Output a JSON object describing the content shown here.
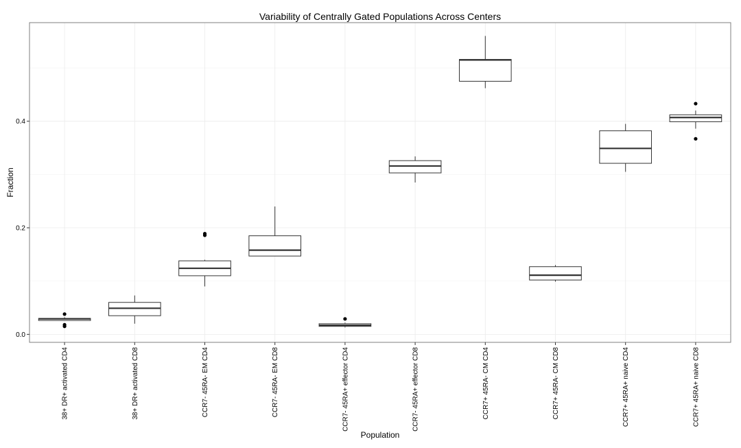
{
  "chart_data": {
    "type": "boxplot",
    "title": "Variability of Centrally Gated Populations Across Centers",
    "xlabel": "Population",
    "ylabel": "Fraction",
    "ylim": [
      -0.015,
      0.585
    ],
    "yticks": [
      0.0,
      0.2,
      0.4
    ],
    "ytick_labels": [
      "0.0",
      "0.2",
      "0.4"
    ],
    "grid": true,
    "categories": [
      "38+ DR+ activated CD4",
      "38+ DR+ activated CD8",
      "CCR7- 45RA- EM CD4",
      "CCR7- 45RA- EM CD8",
      "CCR7- 45RA+ effector CD4",
      "CCR7- 45RA+ effector CD8",
      "CCR7+ 45RA- CM CD4",
      "CCR7+ 45RA- CM CD8",
      "CCR7+ 45RA+ naive CD4",
      "CCR7+ 45RA+ naive CD8"
    ],
    "boxes": [
      {
        "whisker_low": 0.026,
        "q1": 0.026,
        "median": 0.029,
        "q3": 0.03,
        "whisker_high": 0.032,
        "outliers": [
          0.015,
          0.018,
          0.038
        ]
      },
      {
        "whisker_low": 0.02,
        "q1": 0.035,
        "median": 0.049,
        "q3": 0.06,
        "whisker_high": 0.073,
        "outliers": []
      },
      {
        "whisker_low": 0.09,
        "q1": 0.11,
        "median": 0.124,
        "q3": 0.138,
        "whisker_high": 0.14,
        "outliers": [
          0.186,
          0.189
        ]
      },
      {
        "whisker_low": 0.147,
        "q1": 0.147,
        "median": 0.158,
        "q3": 0.185,
        "whisker_high": 0.24,
        "outliers": []
      },
      {
        "whisker_low": 0.013,
        "q1": 0.015,
        "median": 0.017,
        "q3": 0.02,
        "whisker_high": 0.022,
        "outliers": [
          0.029
        ]
      },
      {
        "whisker_low": 0.285,
        "q1": 0.303,
        "median": 0.316,
        "q3": 0.326,
        "whisker_high": 0.334,
        "outliers": []
      },
      {
        "whisker_low": 0.462,
        "q1": 0.475,
        "median": 0.515,
        "q3": 0.516,
        "whisker_high": 0.56,
        "outliers": []
      },
      {
        "whisker_low": 0.099,
        "q1": 0.102,
        "median": 0.111,
        "q3": 0.127,
        "whisker_high": 0.13,
        "outliers": []
      },
      {
        "whisker_low": 0.305,
        "q1": 0.321,
        "median": 0.349,
        "q3": 0.382,
        "whisker_high": 0.395,
        "outliers": []
      },
      {
        "whisker_low": 0.386,
        "q1": 0.399,
        "median": 0.407,
        "q3": 0.412,
        "whisker_high": 0.42,
        "outliers": [
          0.367,
          0.433
        ]
      }
    ]
  }
}
